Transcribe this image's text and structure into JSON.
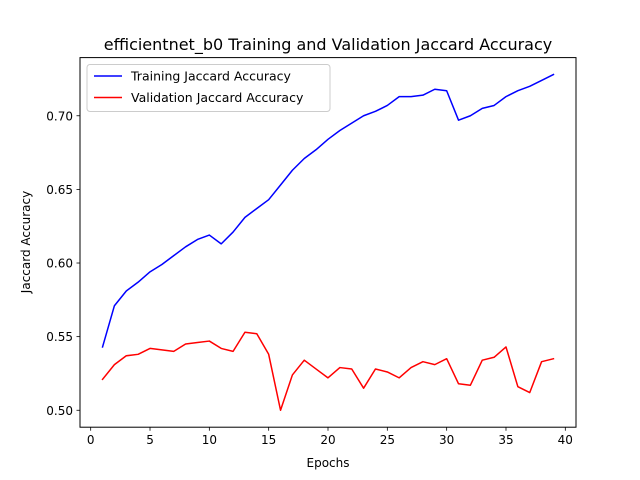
{
  "chart_data": {
    "type": "line",
    "title": "efficientnet_b0 Training and Validation Jaccard Accuracy",
    "xlabel": "Epochs",
    "ylabel": "Jaccard Accuracy",
    "xlim": [
      -0.9,
      40.9
    ],
    "ylim": [
      0.4885,
      0.7395
    ],
    "xticks": [
      0,
      5,
      10,
      15,
      20,
      25,
      30,
      35,
      40
    ],
    "xtick_labels": [
      "0",
      "5",
      "10",
      "15",
      "20",
      "25",
      "30",
      "35",
      "40"
    ],
    "yticks": [
      0.5,
      0.55,
      0.6,
      0.65,
      0.7
    ],
    "ytick_labels": [
      "0.50",
      "0.55",
      "0.60",
      "0.65",
      "0.70"
    ],
    "legend_position": "upper-left",
    "grid": false,
    "x": [
      1,
      2,
      3,
      4,
      5,
      6,
      7,
      8,
      9,
      10,
      11,
      12,
      13,
      14,
      15,
      16,
      17,
      18,
      19,
      20,
      21,
      22,
      23,
      24,
      25,
      26,
      27,
      28,
      29,
      30,
      31,
      32,
      33,
      34,
      35,
      36,
      37,
      38,
      39
    ],
    "series": [
      {
        "name": "Training Jaccard Accuracy",
        "color": "#0000ff",
        "values": [
          0.543,
          0.571,
          0.581,
          0.587,
          0.594,
          0.599,
          0.605,
          0.611,
          0.616,
          0.619,
          0.613,
          0.621,
          0.631,
          0.637,
          0.643,
          0.653,
          0.663,
          0.671,
          0.677,
          0.684,
          0.69,
          0.695,
          0.7,
          0.703,
          0.707,
          0.713,
          0.713,
          0.714,
          0.718,
          0.717,
          0.697,
          0.7,
          0.705,
          0.707,
          0.713,
          0.717,
          0.72,
          0.724,
          0.728
        ]
      },
      {
        "name": "Validation Jaccard Accuracy",
        "color": "#ff0000",
        "values": [
          0.521,
          0.531,
          0.537,
          0.538,
          0.542,
          0.541,
          0.54,
          0.545,
          0.546,
          0.547,
          0.542,
          0.54,
          0.553,
          0.552,
          0.538,
          0.5,
          0.524,
          0.534,
          0.528,
          0.522,
          0.529,
          0.528,
          0.515,
          0.528,
          0.526,
          0.522,
          0.529,
          0.533,
          0.531,
          0.535,
          0.518,
          0.517,
          0.534,
          0.536,
          0.543,
          0.516,
          0.512,
          0.533,
          0.535
        ]
      }
    ]
  }
}
